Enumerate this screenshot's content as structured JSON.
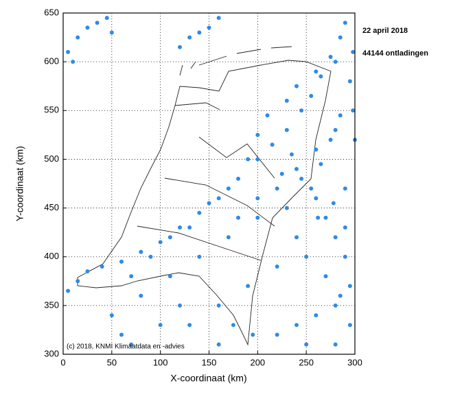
{
  "chart_data": {
    "type": "scatter",
    "annotations": [
      "22 april 2018",
      "44144 ontladingen",
      "(c) 2018, KNMI Klimaatdata en -advies"
    ],
    "xlabel": "X-coordinaat (km)",
    "ylabel": "Y-coordinaat (km)",
    "xlim": [
      0,
      300
    ],
    "ylim": [
      300,
      650
    ],
    "xticks": [
      0,
      50,
      100,
      150,
      200,
      250,
      300
    ],
    "yticks": [
      300,
      350,
      400,
      450,
      500,
      550,
      600,
      650
    ],
    "grid": true,
    "color": "#2f8be6",
    "x": [
      5,
      15,
      25,
      40,
      60,
      80,
      100,
      120,
      140,
      160,
      180,
      200,
      215,
      230,
      245,
      255,
      265,
      275,
      285,
      290,
      50,
      80,
      110,
      140,
      170,
      200,
      230,
      260,
      290,
      130,
      160,
      190,
      220,
      250,
      280,
      220,
      240,
      260,
      280,
      295,
      270,
      290,
      250,
      280,
      5,
      15,
      25,
      35,
      50,
      10,
      45,
      130,
      140,
      150,
      120,
      160,
      180,
      200,
      220,
      240,
      260,
      280,
      298,
      230,
      240,
      260,
      280,
      298,
      200,
      210,
      190,
      170,
      150,
      130,
      110,
      90,
      70,
      60,
      70,
      100,
      120,
      175,
      195,
      160,
      265,
      275,
      285,
      295,
      255,
      245,
      235,
      225,
      270,
      290,
      285,
      295,
      300,
      262,
      278,
      240
    ],
    "y": [
      365,
      375,
      385,
      390,
      395,
      405,
      415,
      430,
      445,
      460,
      480,
      500,
      515,
      530,
      550,
      565,
      585,
      605,
      625,
      640,
      340,
      360,
      380,
      400,
      420,
      440,
      450,
      460,
      470,
      330,
      350,
      370,
      390,
      400,
      420,
      320,
      330,
      340,
      350,
      370,
      380,
      400,
      310,
      310,
      610,
      625,
      635,
      640,
      630,
      600,
      645,
      625,
      630,
      635,
      615,
      645,
      440,
      460,
      470,
      490,
      510,
      530,
      550,
      560,
      575,
      590,
      600,
      610,
      525,
      545,
      500,
      470,
      455,
      430,
      420,
      400,
      380,
      320,
      310,
      330,
      350,
      330,
      320,
      310,
      495,
      520,
      545,
      580,
      470,
      480,
      505,
      485,
      440,
      430,
      360,
      330,
      520,
      440,
      455,
      420
    ]
  }
}
